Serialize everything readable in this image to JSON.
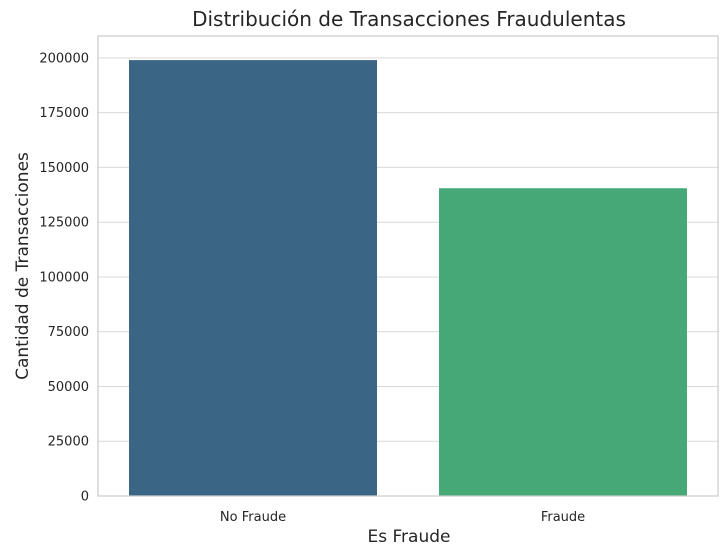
{
  "chart_data": {
    "type": "bar",
    "title": "Distribución de Transacciones Fraudulentas",
    "xlabel": "Es Fraude",
    "ylabel": "Cantidad de Transacciones",
    "categories": [
      "No Fraude",
      "Fraude"
    ],
    "values": [
      199000,
      140500
    ],
    "colors": [
      "#3b6584",
      "#45a876"
    ],
    "ylim": [
      0,
      210000
    ],
    "yticks": [
      0,
      25000,
      50000,
      75000,
      100000,
      125000,
      150000,
      175000,
      200000
    ],
    "grid": true,
    "legend": "none"
  }
}
